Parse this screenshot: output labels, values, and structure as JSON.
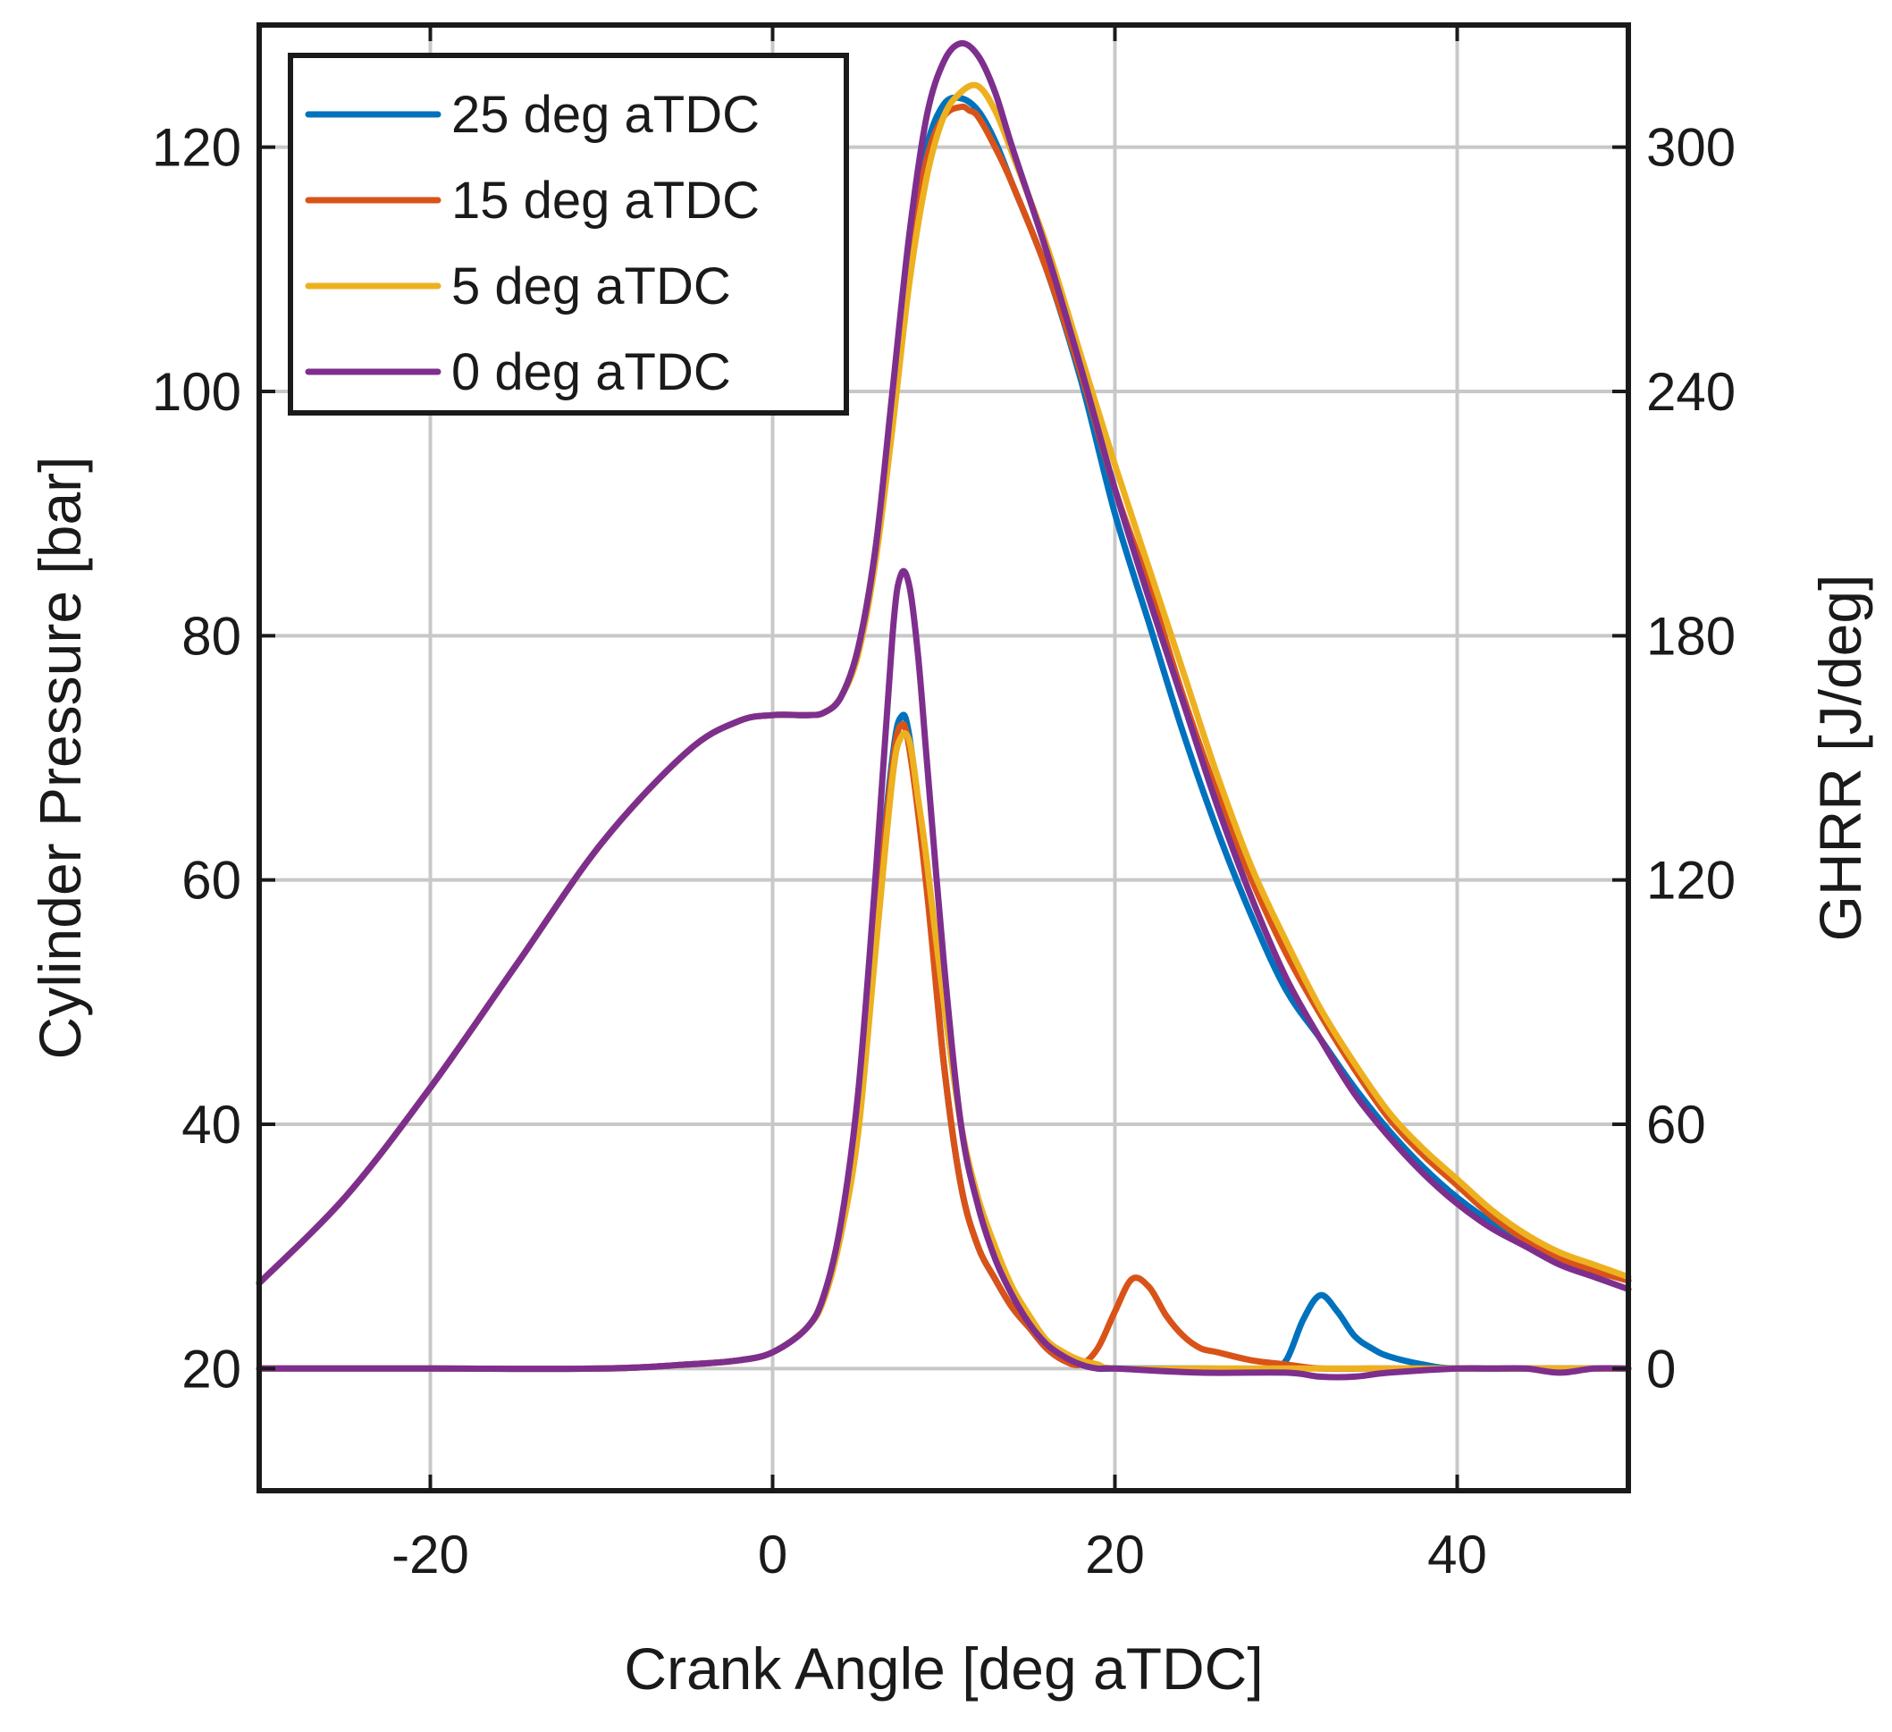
{
  "chart_data": {
    "type": "line",
    "title": "",
    "xlabel": "Crank Angle [deg aTDC]",
    "ylabel": "Cylinder Pressure [bar]",
    "y2label": "GHRR [J/deg]",
    "xlim": [
      -30,
      50
    ],
    "ylim": [
      10,
      130
    ],
    "y2lim": [
      -30,
      330
    ],
    "grid": true,
    "legend_position": "top-left",
    "xticks": [
      -20,
      0,
      20,
      40
    ],
    "xtick_labels": [
      "-20",
      "0",
      "20",
      "40"
    ],
    "yticks": [
      20,
      40,
      60,
      80,
      100,
      120
    ],
    "ytick_labels": [
      "20",
      "40",
      "60",
      "80",
      "100",
      "120"
    ],
    "y2ticks": [
      0,
      60,
      120,
      180,
      240,
      300
    ],
    "y2tick_labels": [
      "0",
      "60",
      "120",
      "180",
      "240",
      "300"
    ],
    "series": [
      {
        "name": "25 deg aTDC",
        "color": "#0072BD",
        "pressure": {
          "x": [
            -30,
            -25,
            -20,
            -15,
            -10,
            -5,
            -2,
            0,
            2,
            3,
            4,
            5,
            6,
            7,
            8,
            9,
            10,
            11,
            12,
            13,
            14,
            16,
            18,
            20,
            22,
            24,
            26,
            28,
            30,
            32,
            34,
            36,
            38,
            40,
            42,
            44,
            46,
            48,
            50
          ],
          "y": [
            27,
            34,
            43,
            53,
            63,
            70.5,
            73,
            73.5,
            73.5,
            73.7,
            75,
            79,
            87,
            99,
            112,
            120,
            123.5,
            124,
            123,
            120.5,
            117,
            110,
            101,
            90,
            81,
            72,
            64,
            57,
            51,
            47,
            43,
            39.5,
            36.5,
            34,
            32,
            30.5,
            29,
            28,
            27.2
          ]
        },
        "ghrr": {
          "x": [
            -30,
            -20,
            -10,
            -5,
            -2,
            0,
            2,
            3,
            4,
            5,
            6,
            7,
            7.5,
            8,
            9,
            10,
            11,
            12,
            13,
            14,
            15,
            16,
            17,
            18,
            19,
            20,
            25,
            29,
            30,
            31,
            32,
            33,
            34,
            35,
            36,
            38,
            40,
            45,
            50
          ],
          "y": [
            0,
            0,
            0,
            1,
            2,
            4,
            10,
            18,
            35,
            65,
            110,
            150,
            160,
            155,
            120,
            75,
            45,
            30,
            22,
            15,
            10,
            5,
            2,
            1,
            0,
            0,
            0,
            0,
            2,
            12,
            18,
            14,
            8,
            5,
            3,
            1,
            0,
            0,
            0
          ]
        }
      },
      {
        "name": "15 deg aTDC",
        "color": "#D95319",
        "pressure": {
          "x": [
            -30,
            -25,
            -20,
            -15,
            -10,
            -5,
            -2,
            0,
            2,
            3,
            4,
            5,
            6,
            7,
            8,
            9,
            10,
            11,
            11.5,
            12,
            13,
            14,
            16,
            18,
            20,
            22,
            24,
            26,
            28,
            30,
            32,
            34,
            36,
            38,
            40,
            42,
            44,
            46,
            48,
            50
          ],
          "y": [
            27,
            34,
            43,
            53,
            63,
            70.5,
            73,
            73.5,
            73.5,
            73.7,
            75,
            79,
            87,
            99,
            111,
            119,
            122.5,
            123.3,
            123,
            122.5,
            120,
            117,
            110,
            101.5,
            92,
            84,
            75,
            67,
            60,
            54,
            49,
            44.5,
            40.5,
            37.5,
            35,
            32.5,
            30.5,
            29,
            28,
            27.2
          ]
        },
        "ghrr": {
          "x": [
            -30,
            -20,
            -10,
            -5,
            -2,
            0,
            2,
            3,
            4,
            5,
            6,
            7,
            7.5,
            8,
            9,
            10,
            11,
            12,
            13,
            14,
            15,
            16,
            17,
            18,
            19,
            20,
            21,
            22,
            23,
            24,
            25,
            26,
            28,
            30,
            32,
            35,
            40,
            45,
            50
          ],
          "y": [
            0,
            0,
            0,
            1,
            2,
            4,
            10,
            18,
            35,
            62,
            108,
            148,
            158,
            152,
            118,
            75,
            45,
            30,
            22,
            15,
            10,
            5,
            2,
            1,
            5,
            14,
            22,
            20,
            13,
            8,
            5,
            4,
            2,
            1,
            0,
            0,
            0,
            0,
            0
          ]
        }
      },
      {
        "name": "5 deg aTDC",
        "color": "#EDB120",
        "pressure": {
          "x": [
            -30,
            -25,
            -20,
            -15,
            -10,
            -5,
            -2,
            0,
            2,
            3,
            4,
            5,
            6,
            7,
            8,
            9,
            10,
            11,
            12,
            13,
            14,
            16,
            18,
            20,
            22,
            24,
            26,
            28,
            30,
            32,
            34,
            36,
            38,
            40,
            42,
            44,
            46,
            48,
            50
          ],
          "y": [
            27,
            34,
            43,
            53,
            63,
            70.5,
            73,
            73.5,
            73.5,
            73.7,
            75,
            78.5,
            86,
            97,
            109,
            117.5,
            122.5,
            124.5,
            125,
            123,
            119.5,
            112,
            103,
            94,
            85.5,
            77,
            68.5,
            61,
            55,
            49.5,
            45,
            41,
            38,
            35.5,
            33,
            31,
            29.5,
            28.5,
            27.5
          ]
        },
        "ghrr": {
          "x": [
            -30,
            -20,
            -10,
            -5,
            -2,
            0,
            2,
            3,
            4,
            5,
            6,
            7,
            7.5,
            8,
            8.5,
            9,
            10,
            11,
            12,
            13,
            14,
            15,
            16,
            17,
            18,
            19,
            20,
            25,
            30,
            35,
            40,
            45,
            50
          ],
          "y": [
            0,
            0,
            0,
            1,
            2,
            4,
            10,
            17,
            33,
            58,
            102,
            145,
            155,
            154,
            140,
            125,
            90,
            60,
            42,
            30,
            20,
            13,
            7,
            4,
            2,
            1,
            0,
            0,
            0,
            0,
            0,
            0,
            0
          ]
        }
      },
      {
        "name": "0 deg aTDC",
        "color": "#7E2F8E",
        "pressure": {
          "x": [
            -30,
            -25,
            -20,
            -15,
            -10,
            -5,
            -2,
            0,
            2,
            3,
            4,
            5,
            6,
            7,
            8,
            9,
            10,
            11,
            12,
            13,
            14,
            16,
            18,
            20,
            22,
            24,
            26,
            28,
            30,
            32,
            34,
            36,
            38,
            40,
            42,
            44,
            46,
            48,
            50
          ],
          "y": [
            27,
            34,
            43,
            53,
            63,
            70.5,
            73,
            73.5,
            73.5,
            73.7,
            75,
            79,
            87,
            100,
            113,
            122.5,
            127,
            128.5,
            127.5,
            124.5,
            120,
            111.5,
            102,
            92,
            83,
            74.5,
            66,
            58.5,
            52,
            47,
            42.5,
            39,
            36,
            33.5,
            31.5,
            30,
            28.5,
            27.5,
            26.5
          ]
        },
        "ghrr": {
          "x": [
            -30,
            -20,
            -10,
            -5,
            -2,
            0,
            2,
            3,
            4,
            5,
            6,
            7,
            7.5,
            8,
            8.5,
            9,
            10,
            11,
            12,
            13,
            14,
            15,
            16,
            17,
            18,
            19,
            20,
            25,
            30,
            32,
            34,
            36,
            40,
            42,
            44,
            46,
            48,
            50
          ],
          "y": [
            0,
            0,
            0,
            1,
            2,
            4,
            10,
            18,
            36,
            68,
            120,
            180,
            195,
            192,
            175,
            150,
            100,
            60,
            40,
            27,
            18,
            11,
            6,
            3,
            1,
            0,
            0,
            -1,
            -1,
            -2,
            -2,
            -1,
            0,
            0,
            0,
            -1,
            0,
            0
          ]
        }
      }
    ]
  }
}
